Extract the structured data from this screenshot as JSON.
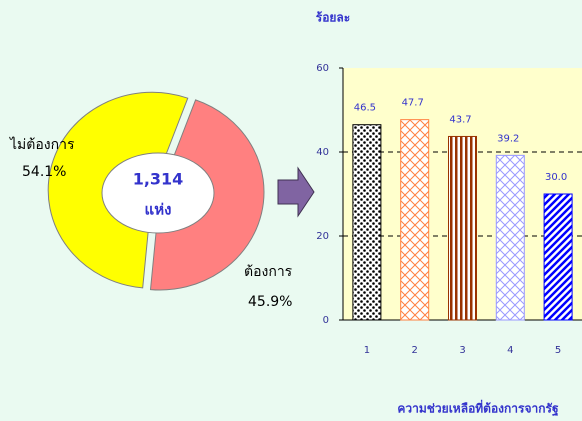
{
  "chart_data": [
    {
      "type": "donut",
      "categories": [
        "ไม่ต้องการ",
        "ต้องการ"
      ],
      "values": [
        54.1,
        45.9
      ],
      "value_labels": [
        "54.1%",
        "45.9%"
      ],
      "colors": [
        "#ffff00",
        "#ff8080"
      ],
      "center_label": [
        "1,314",
        "แห่ง"
      ]
    },
    {
      "type": "bar",
      "ylabel": "ร้อยละ",
      "xlabel": "ความช่วยเหลือที่ต้องการจากรัฐ",
      "categories": [
        "1",
        "2",
        "3",
        "4",
        "5"
      ],
      "values": [
        46.5,
        47.7,
        43.7,
        39.2,
        30.0
      ],
      "value_labels": [
        "46.5",
        "47.7",
        "43.7",
        "39.2",
        "30.0"
      ],
      "colors": [
        "#000000",
        "#ff8040",
        "#993300",
        "#9999ff",
        "#0000ff"
      ],
      "ylim": [
        0,
        60
      ],
      "yticks": [
        0,
        20,
        40,
        60
      ],
      "grid": true
    }
  ]
}
